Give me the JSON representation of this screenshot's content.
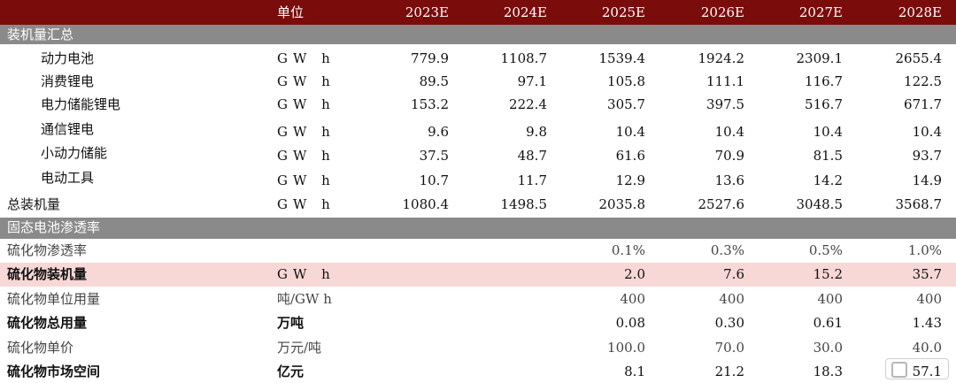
{
  "header": {
    "unit_label": "单位",
    "years": [
      "2023E",
      "2024E",
      "2025E",
      "2026E",
      "2027E",
      "2028E"
    ]
  },
  "section1": {
    "title": "装机量汇总",
    "rows": [
      {
        "label": "动力电池",
        "unit": "GW h",
        "values": [
          "779.9",
          "1108.7",
          "1539.4",
          "1924.2",
          "2309.1",
          "2655.4"
        ]
      },
      {
        "label": "消费锂电",
        "unit": "GW h",
        "values": [
          "89.5",
          "97.1",
          "105.8",
          "111.1",
          "116.7",
          "122.5"
        ]
      },
      {
        "label": "电力储能锂电",
        "unit": "GW h",
        "values": [
          "153.2",
          "222.4",
          "305.7",
          "397.5",
          "516.7",
          "671.7"
        ]
      },
      {
        "label": "通信锂电",
        "unit": "GW h",
        "values": [
          "9.6",
          "9.8",
          "10.4",
          "10.4",
          "10.4",
          "10.4"
        ]
      },
      {
        "label": "小动力储能",
        "unit": "GW h",
        "values": [
          "37.5",
          "48.7",
          "61.6",
          "70.9",
          "81.5",
          "93.7"
        ]
      },
      {
        "label": "电动工具",
        "unit": "GW h",
        "values": [
          "10.7",
          "11.7",
          "12.9",
          "13.6",
          "14.2",
          "14.9"
        ]
      }
    ],
    "total": {
      "label": "总装机量",
      "unit": "GW h",
      "values": [
        "1080.4",
        "1498.5",
        "2035.8",
        "2527.6",
        "3048.5",
        "3568.7"
      ]
    }
  },
  "section2": {
    "title": "固态电池渗透率",
    "rows": [
      {
        "label": "硫化物渗透率",
        "unit": "",
        "values": [
          "",
          "",
          "0.1%",
          "0.3%",
          "0.5%",
          "1.0%"
        ]
      },
      {
        "label": "硫化物装机量",
        "unit": "GW h",
        "values": [
          "",
          "",
          "2.0",
          "7.6",
          "15.2",
          "35.7"
        ]
      },
      {
        "label": "硫化物单位用量",
        "unit": "吨/GW h",
        "values": [
          "",
          "",
          "400",
          "400",
          "400",
          "400"
        ]
      },
      {
        "label": "硫化物总用量",
        "unit": "万吨",
        "values": [
          "",
          "",
          "0.08",
          "0.30",
          "0.61",
          "1.43"
        ]
      },
      {
        "label": "硫化物单价",
        "unit": "万元/吨",
        "values": [
          "",
          "",
          "100.0",
          "70.0",
          "30.0",
          "40.0"
        ]
      },
      {
        "label": "硫化物市场空间",
        "unit": "亿元",
        "values": [
          "",
          "",
          "8.1",
          "21.2",
          "18.3",
          "57.1"
        ]
      }
    ]
  },
  "colors": {
    "header_bg": "#7a0c0c",
    "section_bg": "#8a8a8a",
    "highlight_bg": "#f8d7d7"
  }
}
